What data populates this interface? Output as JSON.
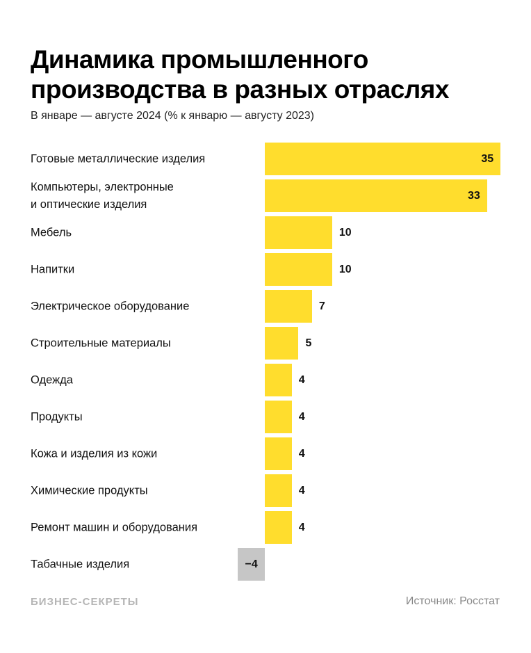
{
  "chart_data": {
    "type": "bar",
    "orientation": "horizontal",
    "title": "Динамика промышленного\nпроизводства в разных отраслях",
    "subtitle": "В январе — августе 2024 (% к январю — августу 2023)",
    "categories": [
      "Готовые металлические изделия",
      "Компьютеры, электронные\nи оптические изделия",
      "Мебель",
      "Напитки",
      "Электрическое оборудование",
      "Строительные материалы",
      "Одежда",
      "Продукты",
      "Кожа и изделия из кожи",
      "Химические продукты",
      "Ремонт машин и оборудования",
      "Табачные изделия"
    ],
    "values": [
      35,
      33,
      10,
      10,
      7,
      5,
      4,
      4,
      4,
      4,
      4,
      -4
    ],
    "value_labels": [
      "35",
      "33",
      "10",
      "10",
      "7",
      "5",
      "4",
      "4",
      "4",
      "4",
      "4",
      "−4"
    ],
    "color": "#ffdd2d",
    "negative_color": "#c6c6c6",
    "brand": "БИЗНЕС-СЕКРЕТЫ",
    "source": "Источник: Росстат"
  }
}
